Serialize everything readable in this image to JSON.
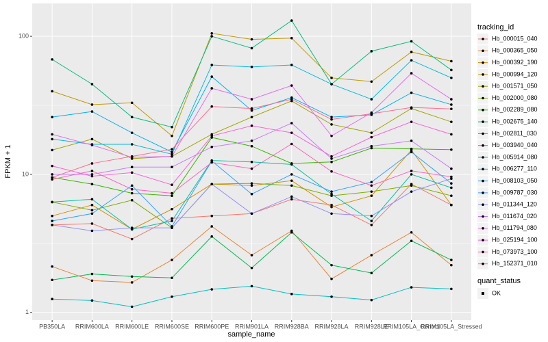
{
  "chart_data": {
    "type": "line",
    "x_label": "sample_name",
    "y_label": "FPKM + 1",
    "log_y": true,
    "grid": true,
    "legend_title": "tracking_id",
    "point_color": "#000000",
    "shape_legend": {
      "title": "quant_status",
      "labels": [
        "OK"
      ]
    },
    "categories": [
      "PB350LA",
      "RRIM600LA",
      "RRIM600LE",
      "RRIM600SE",
      "RRIM600PE",
      "RRIM901LA",
      "RRIM928BA",
      "RRIM928LA",
      "RRIM928LE",
      "RRIM105LA_Control",
      "RRIM105LA_Stressed"
    ],
    "ylim": [
      0.88,
      173
    ],
    "yticks": [
      1,
      10,
      100
    ],
    "series": [
      {
        "name": "Hb_000015_040",
        "color": "#F8766D",
        "values": [
          4.3,
          4.4,
          3.4,
          4.8,
          5.0,
          5.2,
          6.6,
          6.0,
          4.3,
          8.5,
          6.0
        ]
      },
      {
        "name": "Hb_000365_050",
        "color": "#EA8331",
        "values": [
          2.15,
          1.7,
          1.65,
          2.4,
          4.2,
          2.6,
          3.9,
          1.75,
          2.6,
          3.8,
          2.2
        ]
      },
      {
        "name": "Hb_000392_190",
        "color": "#D89000",
        "values": [
          5.0,
          6.0,
          4.0,
          5.6,
          8.5,
          8.3,
          9.0,
          5.8,
          7.0,
          15,
          6.0
        ]
      },
      {
        "name": "Hb_000994_120",
        "color": "#C09B00",
        "values": [
          40,
          32,
          33,
          19,
          105,
          95,
          97,
          50,
          47,
          77,
          66
        ]
      },
      {
        "name": "Hb_001571_050",
        "color": "#A3A500",
        "values": [
          15,
          18,
          13,
          13.5,
          19.5,
          26,
          34,
          23,
          20,
          30,
          24
        ]
      },
      {
        "name": "Hb_002000_080",
        "color": "#7CAE00",
        "values": [
          6.3,
          5.5,
          6.5,
          4.1,
          8.5,
          8.6,
          8.3,
          7.0,
          7.5,
          8.3,
          7.0
        ]
      },
      {
        "name": "Hb_002289_080",
        "color": "#39B600",
        "values": [
          9.5,
          8.5,
          7.3,
          7.0,
          18.5,
          16,
          12,
          12.3,
          15.5,
          15.3,
          15.1
        ]
      },
      {
        "name": "Hb_002675_140",
        "color": "#00BB4E",
        "values": [
          1.72,
          1.9,
          1.82,
          1.78,
          3.55,
          2.1,
          3.8,
          2.2,
          1.93,
          3.3,
          2.4
        ]
      },
      {
        "name": "Hb_002811_030",
        "color": "#00BF7D",
        "values": [
          68,
          45,
          26,
          22,
          100,
          82,
          130,
          45,
          78,
          92,
          57
        ]
      },
      {
        "name": "Hb_003940_040",
        "color": "#00C1A3",
        "values": [
          6.3,
          6.6,
          4.0,
          4.6,
          12.6,
          12.3,
          11.8,
          7.2,
          4.6,
          10,
          8.0
        ]
      },
      {
        "name": "Hb_005914_080",
        "color": "#00BFC4",
        "values": [
          1.25,
          1.22,
          1.1,
          1.3,
          1.47,
          1.55,
          1.36,
          1.3,
          1.23,
          1.52,
          1.48
        ]
      },
      {
        "name": "Hb_006277_110",
        "color": "#00BAE0",
        "values": [
          18,
          16.5,
          16.5,
          14,
          62,
          60,
          62,
          45,
          35,
          67,
          50
        ]
      },
      {
        "name": "Hb_008103_050",
        "color": "#00B0F6",
        "values": [
          26,
          28.5,
          20,
          14.5,
          51,
          29,
          36,
          26,
          27,
          39,
          32
        ]
      },
      {
        "name": "Hb_009787_030",
        "color": "#35A2FF",
        "values": [
          4.6,
          5.2,
          8.3,
          4.2,
          12.5,
          7.2,
          10,
          7.5,
          8.8,
          14.5,
          8.6
        ]
      },
      {
        "name": "Hb_011344_120",
        "color": "#9590FF",
        "values": [
          4.3,
          3.9,
          4.1,
          4.1,
          8.5,
          5.2,
          6.9,
          5.2,
          5.0,
          7.5,
          9.3
        ]
      },
      {
        "name": "Hb_011674_020",
        "color": "#C77CFF",
        "values": [
          10,
          10,
          11.3,
          11.3,
          15.8,
          17.5,
          23.5,
          13,
          16,
          17.5,
          11
        ]
      },
      {
        "name": "Hb_011794_080",
        "color": "#E76BF3",
        "values": [
          19.5,
          16.3,
          13.3,
          13.5,
          42,
          35,
          44,
          19,
          28,
          54,
          35
        ]
      },
      {
        "name": "Hb_025194_100",
        "color": "#FA62DB",
        "values": [
          11.5,
          9.7,
          10.3,
          8.4,
          19,
          22.5,
          20,
          13.5,
          18.6,
          24,
          19.5
        ]
      },
      {
        "name": "Hb_073973_100",
        "color": "#FF62BC",
        "values": [
          9.2,
          10.6,
          7.8,
          7.3,
          12.2,
          11,
          16.6,
          10.5,
          8.3,
          10.6,
          9.6
        ]
      },
      {
        "name": "Hb_152371_010",
        "color": "#FF6C91",
        "values": [
          9.5,
          12,
          13.5,
          15.2,
          31,
          30,
          35,
          25,
          27.5,
          30.5,
          29.8
        ]
      }
    ]
  }
}
